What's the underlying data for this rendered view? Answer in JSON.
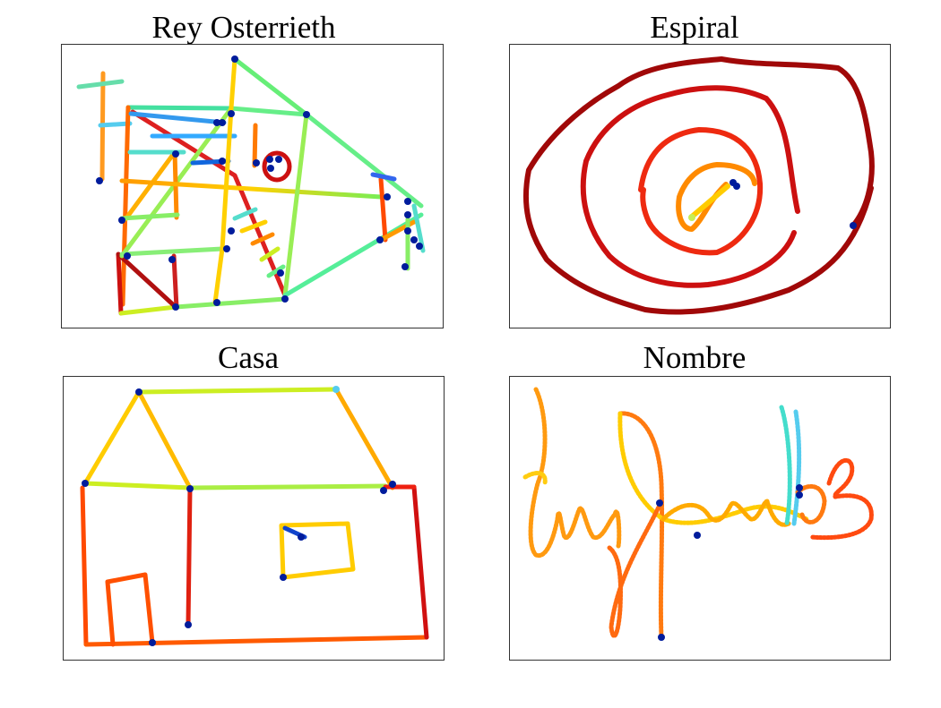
{
  "panels": [
    {
      "title": "Rey Osterrieth",
      "colormap": "jet"
    },
    {
      "title": "Espiral",
      "colormap": "jet"
    },
    {
      "title": "Casa",
      "colormap": "jet"
    },
    {
      "title": "Nombre",
      "colormap": "jet"
    }
  ]
}
